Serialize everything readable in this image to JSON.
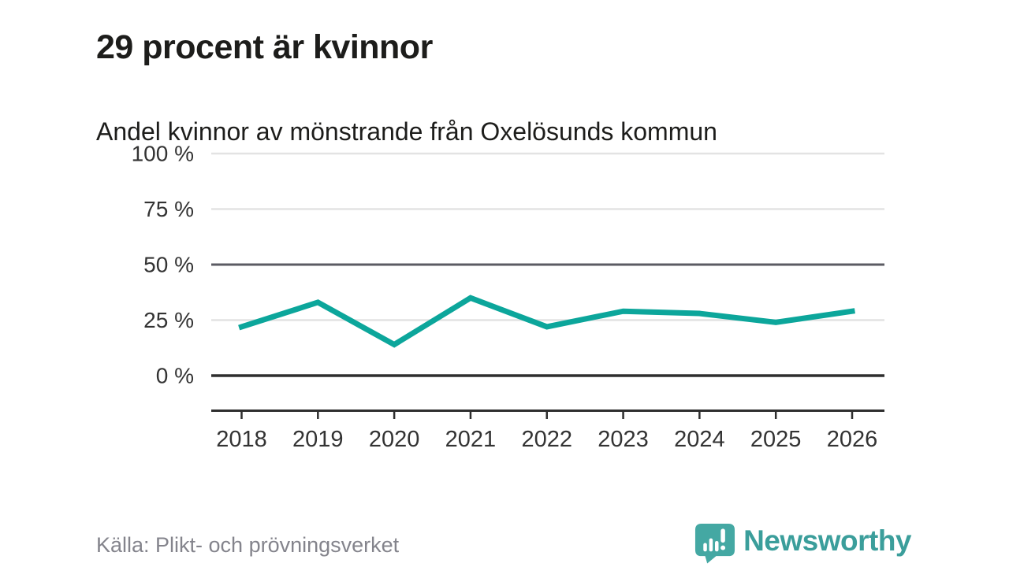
{
  "chart_data": {
    "type": "line",
    "title": "29 procent är kvinnor",
    "subtitle": "Andel kvinnor av mönstrande från Oxelösunds kommun",
    "categories": [
      "2018",
      "2019",
      "2020",
      "2021",
      "2022",
      "2023",
      "2024",
      "2025",
      "2026"
    ],
    "series": [
      {
        "name": "Andel kvinnor av mönstrande",
        "values": [
          22,
          33,
          14,
          35,
          22,
          29,
          28,
          24,
          29
        ]
      }
    ],
    "values": [
      22,
      33,
      14,
      35,
      22,
      29,
      28,
      24,
      29
    ],
    "unit": "%",
    "xlabel": "",
    "ylabel": "",
    "ylim": [
      0,
      100
    ],
    "ytick_values": [
      0,
      25,
      50,
      75,
      100
    ],
    "ytick_labels": [
      "0 %",
      "25 %",
      "50 %",
      "75 %",
      "100 %"
    ],
    "grid": "horizontal",
    "emphasized_gridline": 50,
    "baseline_gridline": 0,
    "legend": "none",
    "line_color": "#0CA69B"
  },
  "footer": {
    "source": "Källa: Plikt- och prövningsverket",
    "logo_text": "Newsworthy"
  },
  "colors": {
    "accent_teal": "#0CA69B",
    "logo_icon_teal": "#44A8A3",
    "logo_text_teal": "#3B9E9B",
    "title_text": "#1D1D1B",
    "axis_text": "#333333",
    "source_text": "#84848C",
    "grid_light": "#E3E3E3",
    "grid_dark": "#5B5B63",
    "axis_line": "#2E2E2E",
    "background": "#FFFFFF"
  }
}
